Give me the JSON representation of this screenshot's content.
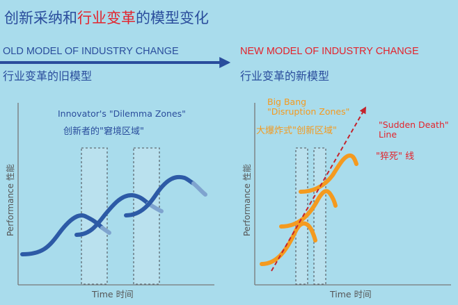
{
  "title": {
    "part1": "创新采纳和",
    "part2": "行业变革",
    "part3": "的模型变化"
  },
  "old_model": {
    "label_en": "OLD MODEL OF INDUSTRY CHANGE",
    "label_zh": "行业变革的旧模型"
  },
  "new_model": {
    "label_en": "NEW MODEL OF INDUSTRY CHANGE",
    "label_zh": "行业变革的新模型"
  },
  "left_diagram": {
    "caption_en": "Innovator's \"Dilemma Zones\"",
    "caption_zh": "创新者的\"窘境区域\"",
    "y_axis": "Performance 性能",
    "x_axis": "Time 时间"
  },
  "right_diagram": {
    "caption_en_line1": "Big Bang",
    "caption_en_line2": "\"Disruption Zones\"",
    "caption_zh": "大爆炸式\"创新区域\"",
    "sudden_death_en_line1": "\"Sudden Death\"",
    "sudden_death_en_line2": "Line",
    "sudden_death_zh": "\"猝死\" 线",
    "y_axis": "Performance 性能",
    "x_axis": "Time 时间"
  },
  "colors": {
    "background": "#a9dcec",
    "old_blue": "#2a4d9c",
    "new_red": "#e3232c",
    "orange": "#f49a1f",
    "curve_blue": "#2d5aa6",
    "curve_light": "#7fa4cf"
  }
}
